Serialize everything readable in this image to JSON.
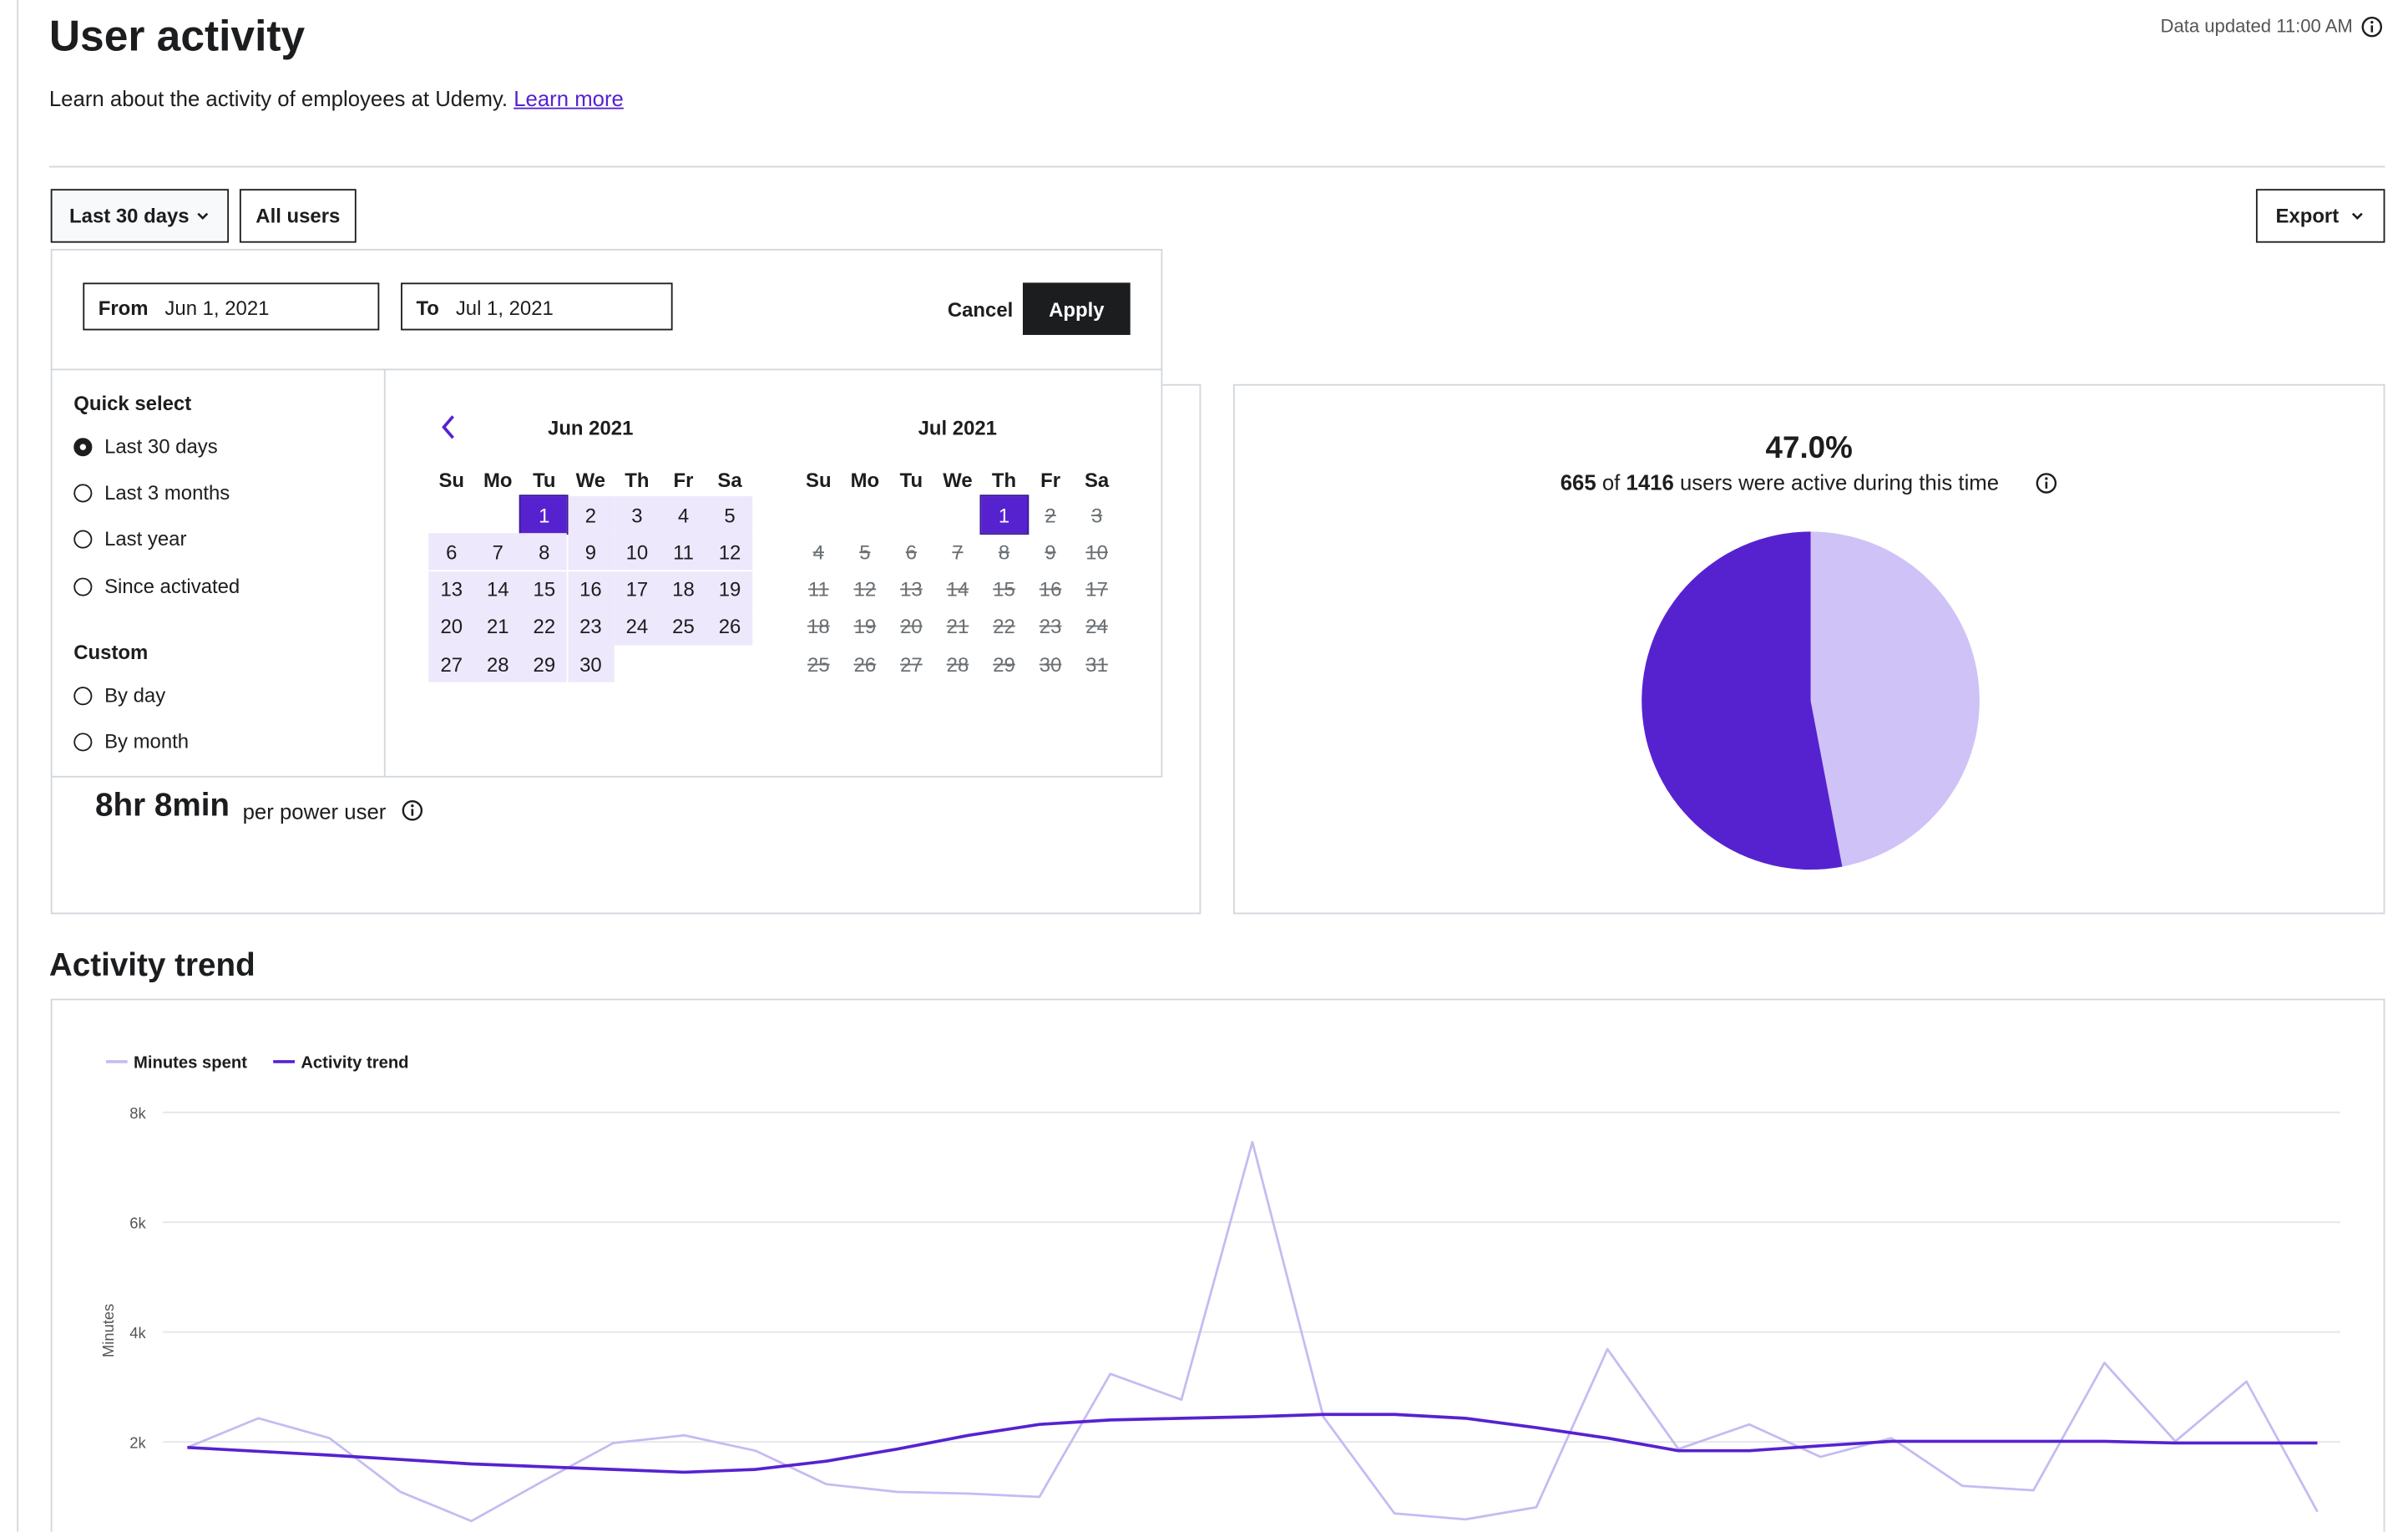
{
  "header": {
    "title": "User activity",
    "subtitle": "Learn about the activity of employees at Udemy.",
    "link": "Learn more",
    "updated": "Data updated 11:00 AM"
  },
  "filters": {
    "range": "Last 30 days",
    "users": "All users",
    "export": "Export"
  },
  "date_picker": {
    "from_label": "From",
    "from": "Jun 1, 2021",
    "to_label": "To",
    "to": "Jul 1, 2021",
    "cancel": "Cancel",
    "apply": "Apply",
    "quick_title": "Quick select",
    "quick": [
      "Last 30 days",
      "Last 3 months",
      "Last year",
      "Since activated"
    ],
    "custom_title": "Custom",
    "custom": [
      "By day",
      "By month"
    ],
    "weekdays": [
      "Su",
      "Mo",
      "Tu",
      "We",
      "Th",
      "Fr",
      "Sa"
    ],
    "months": [
      {
        "title": "Jun 2021",
        "days": [
          null,
          null,
          "1",
          "2",
          "3",
          "4",
          "5",
          "6",
          "7",
          "8",
          "9",
          "10",
          "11",
          "12",
          "13",
          "14",
          "15",
          "16",
          "17",
          "18",
          "19",
          "20",
          "21",
          "22",
          "23",
          "24",
          "25",
          "26",
          "27",
          "28",
          "29",
          "30"
        ]
      },
      {
        "title": "Jul 2021",
        "days": [
          null,
          null,
          null,
          null,
          "1",
          "2",
          "3",
          "4",
          "5",
          "6",
          "7",
          "8",
          "9",
          "10",
          "11",
          "12",
          "13",
          "14",
          "15",
          "16",
          "17",
          "18",
          "19",
          "20",
          "21",
          "22",
          "23",
          "24",
          "25",
          "26",
          "27",
          "28",
          "29",
          "30",
          "31"
        ]
      }
    ]
  },
  "power_user": {
    "value": "8hr 8min",
    "text": "per power user"
  },
  "active_users": {
    "percent": "47.0%",
    "active": "665",
    "of": "of",
    "total": "1416",
    "text": "users were active during this time",
    "chart": {
      "type": "pie",
      "values": [
        47,
        53
      ],
      "colors": [
        "#cfc2f7",
        "#5622d0"
      ]
    }
  },
  "trend": {
    "title": "Activity trend",
    "chart": {
      "type": "line",
      "y_label": "Minutes",
      "categories": [
        null,
        null,
        null,
        null,
        null,
        null,
        null,
        null,
        null,
        null,
        null,
        null,
        null,
        null,
        null,
        null,
        null,
        null,
        null,
        null,
        null,
        null,
        null,
        null,
        null,
        null,
        null,
        null,
        null,
        null,
        null
      ],
      "series": [
        {
          "name": "Minutes spent",
          "color": "#c7baf2",
          "values": [
            1900,
            2430,
            2070,
            1090,
            560,
            1280,
            1980,
            2120,
            1840,
            1230,
            1090,
            1060,
            1000,
            3240,
            2770,
            7460,
            2460,
            700,
            590,
            810,
            3690,
            1870,
            2320,
            1730,
            2070,
            1200,
            1120,
            3440,
            2010,
            3100,
            730
          ]
        },
        {
          "name": "Activity trend",
          "color": "#5622d0",
          "values": [
            1900,
            1830,
            1760,
            1680,
            1600,
            1550,
            1500,
            1450,
            1500,
            1650,
            1870,
            2120,
            2320,
            2400,
            2430,
            2460,
            2500,
            2500,
            2430,
            2260,
            2070,
            1840,
            1840,
            1930,
            2010,
            2010,
            2010,
            2010,
            1980,
            1980,
            1980
          ]
        }
      ],
      "ylim": [
        0,
        8000
      ],
      "yticks": [
        {
          "value": 2000,
          "label": "2k"
        },
        {
          "value": 4000,
          "label": "4k"
        },
        {
          "value": 6000,
          "label": "6k"
        },
        {
          "value": 8000,
          "label": "8k"
        }
      ],
      "grid": true
    }
  }
}
